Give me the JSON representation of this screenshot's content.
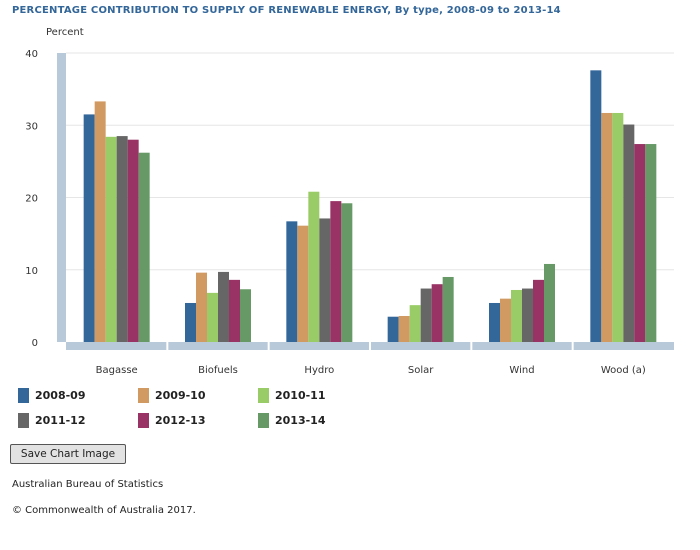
{
  "header": {
    "title": "PERCENTAGE CONTRIBUTION TO SUPPLY OF RENEWABLE ENERGY, By type, 2008-09 to 2013-14"
  },
  "chart_data": {
    "type": "bar",
    "title": "PERCENTAGE CONTRIBUTION TO SUPPLY OF RENEWABLE ENERGY, By type, 2008-09 to 2013-14",
    "ylabel": "Percent",
    "xlabel": "",
    "ylim": [
      0,
      40
    ],
    "yticks": [
      0,
      10,
      20,
      30,
      40
    ],
    "grid": true,
    "legend_position": "bottom-left",
    "categories": [
      "Bagasse",
      "Biofuels",
      "Hydro",
      "Solar",
      "Wind",
      "Wood (a)"
    ],
    "series": [
      {
        "name": "2008-09",
        "color": "#336699",
        "values": [
          31.5,
          5.4,
          16.7,
          3.5,
          5.4,
          37.6
        ]
      },
      {
        "name": "2009-10",
        "color": "#d19a63",
        "values": [
          33.3,
          9.6,
          16.1,
          3.6,
          6.0,
          31.7
        ]
      },
      {
        "name": "2010-11",
        "color": "#99cc66",
        "values": [
          28.4,
          6.8,
          20.8,
          5.1,
          7.2,
          31.7
        ]
      },
      {
        "name": "2011-12",
        "color": "#666666",
        "values": [
          28.5,
          9.7,
          17.1,
          7.4,
          7.4,
          30.1
        ]
      },
      {
        "name": "2012-13",
        "color": "#993366",
        "values": [
          28.0,
          8.6,
          19.5,
          8.0,
          8.6,
          27.4
        ]
      },
      {
        "name": "2013-14",
        "color": "#669966",
        "values": [
          26.2,
          7.3,
          19.2,
          9.0,
          10.8,
          27.4
        ]
      }
    ]
  },
  "buttons": {
    "save_chart": "Save Chart Image"
  },
  "footer": {
    "source": "Australian Bureau of Statistics",
    "copyright": "© Commonwealth of Australia 2017."
  }
}
